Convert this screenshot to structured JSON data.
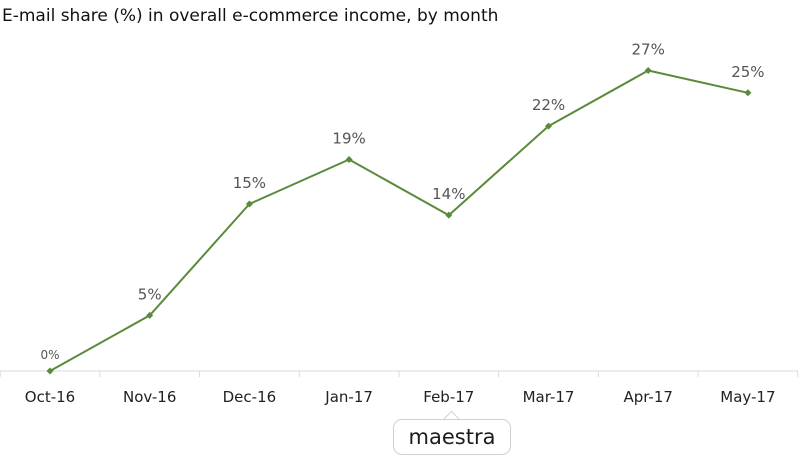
{
  "chart_data": {
    "type": "line",
    "title": "E-mail share (%) in overall e-commerce income, by month",
    "xlabel": "",
    "ylabel": "",
    "categories": [
      "Oct-16",
      "Nov-16",
      "Dec-16",
      "Jan-17",
      "Feb-17",
      "Mar-17",
      "Apr-17",
      "May-17"
    ],
    "series": [
      {
        "values": [
          0,
          5,
          15,
          19,
          14,
          22,
          27,
          25
        ],
        "labels": [
          "0%",
          "5%",
          "15%",
          "19%",
          "14%",
          "22%",
          "27%",
          "25%"
        ]
      }
    ],
    "ylim": [
      0,
      30
    ],
    "grid": false,
    "legend": "none",
    "line_color": "#5b8a3a",
    "label_color": "#555555"
  },
  "watermark": {
    "text": "maestra"
  }
}
